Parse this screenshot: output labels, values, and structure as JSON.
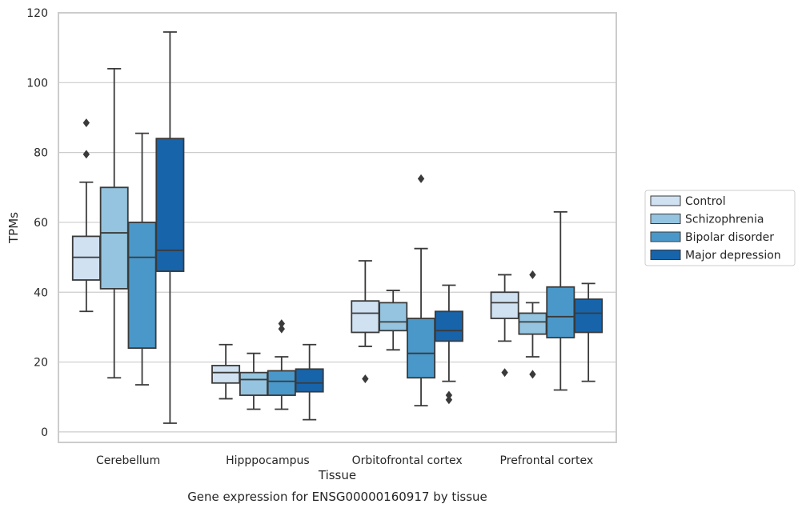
{
  "chart_data": {
    "type": "box",
    "caption": "Gene expression for ENSG00000160917 by tissue",
    "xlabel": "Tissue",
    "ylabel": "TPMs",
    "ylim": [
      -3,
      120
    ],
    "yticks": [
      0,
      20,
      40,
      60,
      80,
      100,
      120
    ],
    "grid": "horizontal",
    "legend_position": "right",
    "categories": [
      "Cerebellum",
      "Hipppocampus",
      "Orbitofrontal cortex",
      "Prefrontal cortex"
    ],
    "series": [
      {
        "name": "Control",
        "color": "#d0e1f2",
        "boxes": [
          {
            "whislo": 34.5,
            "q1": 43.5,
            "med": 50,
            "q3": 56,
            "whishi": 71.5,
            "fliers": [
              79.5,
              88.5
            ]
          },
          {
            "whislo": 9.5,
            "q1": 14,
            "med": 17,
            "q3": 19,
            "whishi": 25,
            "fliers": []
          },
          {
            "whislo": 24.5,
            "q1": 28.5,
            "med": 34,
            "q3": 37.5,
            "whishi": 49,
            "fliers": [
              15.2
            ]
          },
          {
            "whislo": 26,
            "q1": 32.5,
            "med": 37,
            "q3": 40,
            "whishi": 45,
            "fliers": [
              17
            ]
          }
        ]
      },
      {
        "name": "Schizophrenia",
        "color": "#94c4df",
        "boxes": [
          {
            "whislo": 15.5,
            "q1": 41,
            "med": 57,
            "q3": 70,
            "whishi": 104,
            "fliers": []
          },
          {
            "whislo": 6.5,
            "q1": 10.5,
            "med": 15,
            "q3": 17,
            "whishi": 22.5,
            "fliers": []
          },
          {
            "whislo": 23.5,
            "q1": 29,
            "med": 31.5,
            "q3": 37,
            "whishi": 40.5,
            "fliers": []
          },
          {
            "whislo": 21.5,
            "q1": 28,
            "med": 31.5,
            "q3": 34,
            "whishi": 37,
            "fliers": [
              16.5,
              45
            ]
          }
        ]
      },
      {
        "name": "Bipolar disorder",
        "color": "#4a98c9",
        "boxes": [
          {
            "whislo": 13.5,
            "q1": 24,
            "med": 50,
            "q3": 60,
            "whishi": 85.5,
            "fliers": []
          },
          {
            "whislo": 6.5,
            "q1": 10.5,
            "med": 14.5,
            "q3": 17.5,
            "whishi": 21.5,
            "fliers": [
              29.5,
              31
            ]
          },
          {
            "whislo": 7.5,
            "q1": 15.5,
            "med": 22.5,
            "q3": 32.5,
            "whishi": 52.5,
            "fliers": [
              72.5
            ]
          },
          {
            "whislo": 12,
            "q1": 27,
            "med": 33,
            "q3": 41.5,
            "whishi": 63,
            "fliers": []
          }
        ]
      },
      {
        "name": "Major depression",
        "color": "#1764ab",
        "boxes": [
          {
            "whislo": 2.5,
            "q1": 46,
            "med": 52,
            "q3": 84,
            "whishi": 114.5,
            "fliers": []
          },
          {
            "whislo": 3.5,
            "q1": 11.5,
            "med": 14,
            "q3": 18,
            "whishi": 25,
            "fliers": []
          },
          {
            "whislo": 14.5,
            "q1": 26,
            "med": 29,
            "q3": 34.5,
            "whishi": 42,
            "fliers": [
              9.2,
              10.5
            ]
          },
          {
            "whislo": 14.5,
            "q1": 28.5,
            "med": 34,
            "q3": 38,
            "whishi": 42.5,
            "fliers": []
          }
        ]
      }
    ]
  }
}
